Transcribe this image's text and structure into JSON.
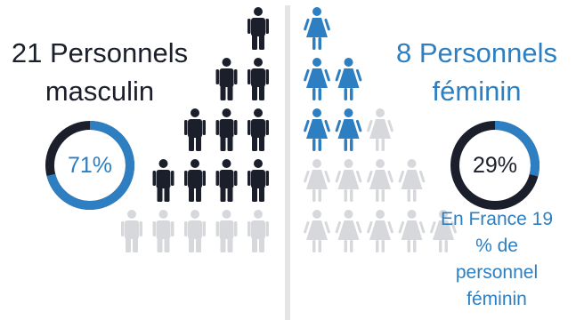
{
  "chart_data": {
    "type": "pictogram",
    "series": [
      {
        "name": "Personnels masculin",
        "count": 21,
        "percent": 71,
        "color": "#1b1f2b",
        "icon": "man-icon"
      },
      {
        "name": "Personnels féminin",
        "count": 8,
        "percent": 29,
        "color": "#2d7fc1",
        "icon": "woman-icon"
      }
    ],
    "rows": [
      {
        "male_filled": 1,
        "female_filled": 1,
        "male_total": 1,
        "female_total": 1
      },
      {
        "male_filled": 2,
        "female_filled": 2,
        "male_total": 2,
        "female_total": 2
      },
      {
        "male_filled": 3,
        "female_filled": 2,
        "male_total": 3,
        "female_total": 3
      },
      {
        "male_filled": 4,
        "female_filled": 0,
        "male_total": 4,
        "female_total": 4
      },
      {
        "male_filled": 0,
        "female_filled": 0,
        "male_total": 5,
        "female_total": 5
      }
    ],
    "inactive_color": "#d6d8db",
    "divider_color": "#e4e5e7"
  },
  "male": {
    "line1": "21 Personnels",
    "line2": "masculin",
    "percent_label": "71%",
    "percent": 71
  },
  "female": {
    "line1": "8 Personnels",
    "line2": "féminin",
    "percent_label": "29%",
    "percent": 29,
    "note_line1": "En France 19",
    "note_line2": "% de",
    "note_line3": "personnel",
    "note_line4": "féminin"
  },
  "colors": {
    "male": "#1b1f2b",
    "female": "#2d7fc1",
    "track_dark": "#1b1f2b",
    "track_blue": "#2d7fc1"
  }
}
